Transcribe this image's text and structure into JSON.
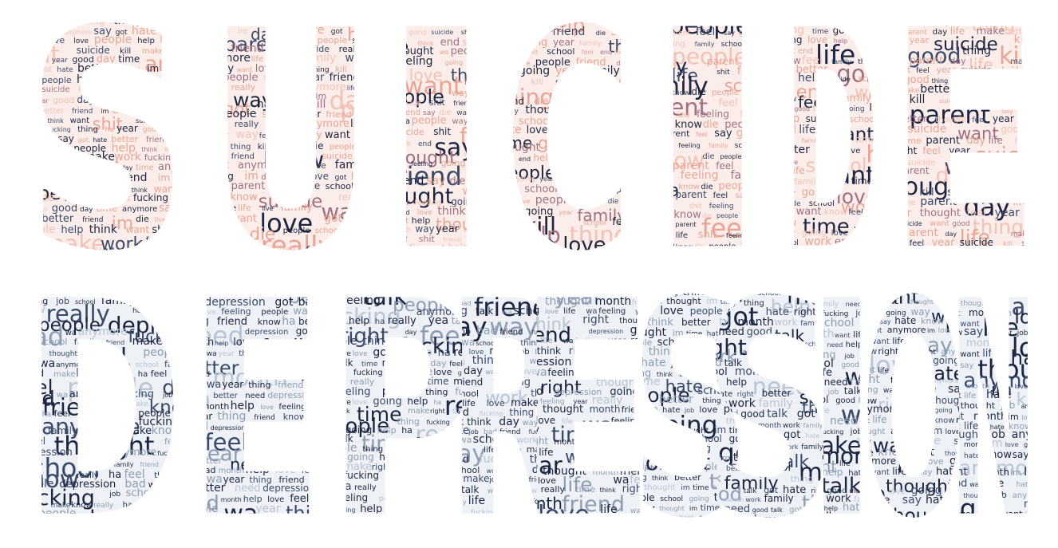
{
  "colors": {
    "background": "#ffffff",
    "navy": "#1c2541",
    "slate": "#3a4a6b",
    "mauve": "#a07080",
    "salmon": "#e8a595",
    "pink": "#f2c2b6",
    "steel": "#8e9db3",
    "pale_steel": "#b9c4d4"
  },
  "clouds": [
    {
      "word": "SUICIDE",
      "palette": [
        "navy",
        "salmon",
        "mauve",
        "pink",
        "slate",
        "navy",
        "salmon"
      ],
      "letters": [
        {
          "char": "S",
          "words": [
            "make",
            "work",
            "fucking",
            "thing",
            "ha",
            "year",
            "good",
            "day",
            "time",
            "anymore",
            "say",
            "got",
            "hate",
            "better",
            "friend",
            "im",
            "die",
            "live",
            "love",
            "people",
            "help",
            "think",
            "want",
            "shit",
            "suicide",
            "kill"
          ]
        },
        {
          "char": "U",
          "words": [
            "really",
            "think",
            "anymore",
            "life",
            "live",
            "family",
            "way",
            "feeling",
            "im",
            "day",
            "want",
            "love",
            "got",
            "ha",
            "thing",
            "kill",
            "parent",
            "die",
            "people",
            "school",
            "year",
            "friend",
            "know",
            "suicide"
          ]
        },
        {
          "char": "I",
          "words": [
            "help",
            "thought",
            "wa",
            "people",
            "way",
            "year",
            "feeling",
            "going",
            "suicide",
            "shit",
            "friend",
            "love",
            "think",
            "end",
            "say",
            "die",
            "want"
          ]
        },
        {
          "char": "C",
          "words": [
            "feel",
            "end",
            "help",
            "thing",
            "hate",
            "love",
            "people",
            "friend",
            "die",
            "shit",
            "time",
            "going",
            "year",
            "family",
            "thought",
            "really",
            "kill",
            "school"
          ]
        },
        {
          "char": "I",
          "words": [
            "know",
            "die",
            "people",
            "friend",
            "really",
            "parent",
            "feel",
            "say",
            "got",
            "end",
            "life",
            "shit",
            "feeling",
            "family",
            "school",
            "going",
            "wa"
          ]
        },
        {
          "char": "D",
          "words": [
            "want",
            "know",
            "feel",
            "family",
            "thing",
            "time",
            "good",
            "better",
            "going",
            "love",
            "help",
            "suicide",
            "school",
            "work",
            "end",
            "life"
          ]
        },
        {
          "char": "E",
          "words": [
            "suicide",
            "want",
            "good",
            "thing",
            "kill",
            "time",
            "parent",
            "day",
            "life",
            "make",
            "better",
            "thought",
            "feel",
            "year",
            "suicide",
            "kill"
          ]
        }
      ]
    },
    {
      "word": "DEPRESSION",
      "palette": [
        "navy",
        "steel",
        "navy",
        "pale_steel",
        "slate",
        "navy",
        "steel",
        "navy",
        "slate",
        "navy"
      ],
      "letters": [
        {
          "char": "D",
          "words": [
            "feel",
            "people",
            "depression",
            "bad",
            "wa",
            "anymore",
            "fucking",
            "job",
            "school",
            "family",
            "friend",
            "make",
            "know",
            "really",
            "ha",
            "feel",
            "thought"
          ]
        },
        {
          "char": "E",
          "words": [
            "thing",
            "friend",
            "know",
            "ha",
            "better",
            "need",
            "depression",
            "got",
            "bad",
            "month",
            "help",
            "love",
            "feeling",
            "people",
            "wa",
            "year"
          ]
        },
        {
          "char": "P",
          "words": [
            "really",
            "yea",
            "talk",
            "time",
            "make",
            "right",
            "day",
            "feeling",
            "people",
            "thing",
            "fucking",
            "anymore",
            "love",
            "going",
            "help",
            "ha"
          ]
        },
        {
          "char": "R",
          "words": [
            "think",
            "day",
            "way",
            "life",
            "love",
            "make",
            "job",
            "bad",
            "friend",
            "fucking",
            "thing",
            "talk",
            "wa",
            "school",
            "work"
          ]
        },
        {
          "char": "E",
          "words": [
            "feeling",
            "year",
            "really",
            "time",
            "think",
            "right",
            "thought",
            "month",
            "friend",
            "depression",
            "going",
            "love",
            "life",
            "wa"
          ]
        },
        {
          "char": "S",
          "words": [
            "school",
            "going",
            "think",
            "better",
            "thing",
            "got",
            "thought",
            "im",
            "time",
            "hate",
            "job",
            "love",
            "people"
          ]
        },
        {
          "char": "S",
          "words": [
            "better",
            "school",
            "month",
            "work",
            "family",
            "thing",
            "help",
            "need",
            "good",
            "talk",
            "got",
            "hate",
            "right"
          ]
        },
        {
          "char": "I",
          "words": [
            "good",
            "month",
            "want",
            "life",
            "work",
            "family",
            "need",
            "help",
            "hate",
            "fucking",
            "job",
            "talk",
            "make",
            "school"
          ]
        },
        {
          "char": "O",
          "words": [
            "way",
            "want",
            "life",
            "say",
            "hate",
            "know",
            "right",
            "thought",
            "anymore",
            "im",
            "love",
            "going"
          ]
        },
        {
          "char": "N",
          "words": [
            "good",
            "want",
            "life",
            "hate",
            "know",
            "say",
            "thought",
            "job",
            "anymore",
            "right",
            "month",
            "im",
            "love"
          ]
        }
      ]
    }
  ]
}
